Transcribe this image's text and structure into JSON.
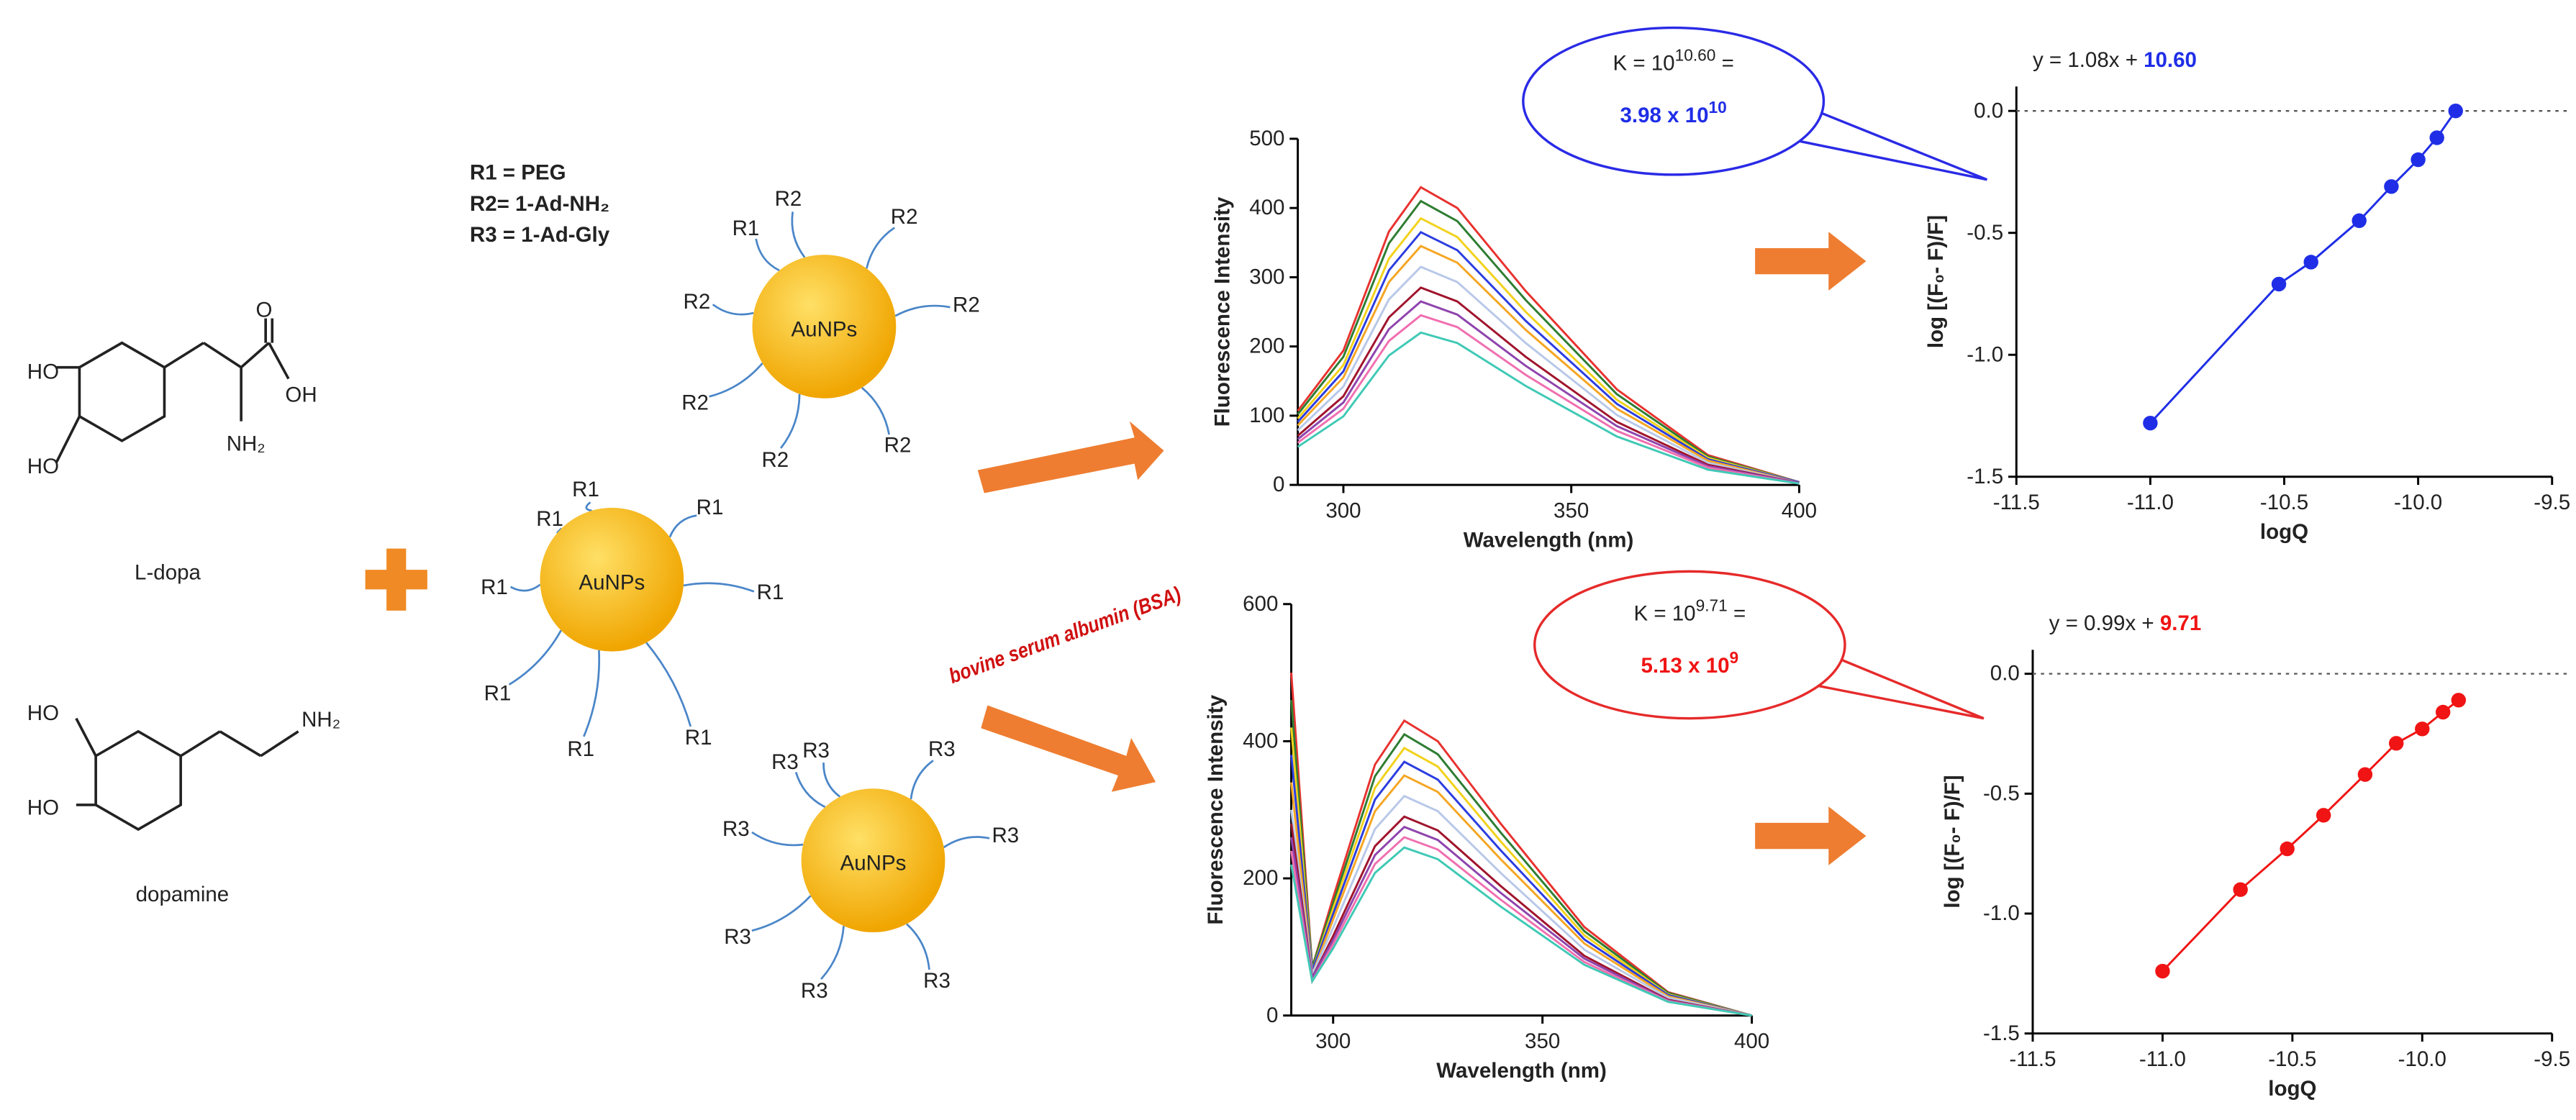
{
  "chart_data": [
    {
      "type": "line",
      "x_label": "Wavelength (nm)",
      "y_label": "Fluorescence Intensity",
      "x": [
        290,
        300,
        310,
        317,
        325,
        340,
        360,
        380,
        400
      ],
      "xlim": [
        290,
        400
      ],
      "xticks": [
        300,
        350,
        400
      ],
      "ylim": [
        0,
        500
      ],
      "yticks": [
        0,
        100,
        200,
        300,
        400,
        500
      ],
      "series": [
        {
          "color": "#e8322f",
          "values": [
            107,
            194,
            366,
            430,
            400,
            280,
            138,
            43,
            4
          ]
        },
        {
          "color": "#2e7d32",
          "values": [
            102,
            185,
            349,
            410,
            381,
            267,
            131,
            41,
            4
          ]
        },
        {
          "color": "#f2d21b",
          "values": [
            96,
            173,
            327,
            385,
            358,
            250,
            123,
            39,
            4
          ]
        },
        {
          "color": "#2b3de0",
          "values": [
            91,
            164,
            310,
            365,
            339,
            237,
            117,
            37,
            4
          ]
        },
        {
          "color": "#f5a623",
          "values": [
            86,
            155,
            293,
            345,
            321,
            224,
            110,
            35,
            3
          ]
        },
        {
          "color": "#b8c8e8",
          "values": [
            79,
            142,
            268,
            315,
            293,
            205,
            101,
            32,
            3
          ]
        },
        {
          "color": "#a0142c",
          "values": [
            71,
            128,
            242,
            285,
            265,
            185,
            91,
            29,
            3
          ]
        },
        {
          "color": "#8e44ad",
          "values": [
            66,
            119,
            225,
            265,
            246,
            172,
            85,
            27,
            3
          ]
        },
        {
          "color": "#f06fb0",
          "values": [
            61,
            110,
            208,
            245,
            228,
            159,
            78,
            25,
            2
          ]
        },
        {
          "color": "#3fc9b5",
          "values": [
            55,
            99,
            187,
            220,
            205,
            143,
            70,
            22,
            2
          ]
        }
      ]
    },
    {
      "type": "scatter",
      "color": "#1f2ee6",
      "equation": "y = 1.08x + ",
      "intercept_label": "10.60",
      "x_label": "logQ",
      "y_label": "log [(F₀- F)/F]",
      "zero_line": true,
      "x": [
        -11.0,
        -10.52,
        -10.4,
        -10.22,
        -10.1,
        -10.0,
        -9.93,
        -9.86
      ],
      "values": [
        -1.28,
        -0.71,
        -0.62,
        -0.45,
        -0.31,
        -0.2,
        -0.11,
        0.0
      ],
      "xlim": [
        -11.5,
        -9.5
      ],
      "xticks": [
        -11.5,
        {
          "value": -11,
          "label": "-11.0"
        },
        -10.5,
        {
          "value": -10,
          "label": "-10.0"
        },
        -9.5
      ],
      "ylim": [
        -1.5,
        0.1
      ],
      "yticks": [
        {
          "value": 0,
          "label": "0.0"
        },
        -0.5,
        {
          "value": -1,
          "label": "-1.0"
        },
        -1.5
      ]
    },
    {
      "type": "line",
      "x_label": "Wavelength (nm)",
      "y_label": "Fluorescence Intensity",
      "x": [
        290,
        295,
        300,
        310,
        317,
        325,
        340,
        360,
        380,
        400
      ],
      "xlim": [
        290,
        400
      ],
      "xticks": [
        300,
        350,
        400
      ],
      "ylim": [
        0,
        600
      ],
      "yticks": [
        0,
        200,
        400,
        600
      ],
      "series": [
        {
          "color": "#e8322f",
          "values": [
            500,
            70,
            172,
            366,
            430,
            400,
            280,
            129,
            34,
            0
          ]
        },
        {
          "color": "#2e7d32",
          "values": [
            460,
            70,
            164,
            349,
            410,
            381,
            267,
            123,
            33,
            0
          ]
        },
        {
          "color": "#f2d21b",
          "values": [
            420,
            65,
            156,
            332,
            390,
            363,
            254,
            117,
            31,
            0
          ]
        },
        {
          "color": "#2b3de0",
          "values": [
            380,
            65,
            148,
            315,
            370,
            344,
            241,
            111,
            30,
            0
          ]
        },
        {
          "color": "#f5a623",
          "values": [
            340,
            60,
            140,
            298,
            350,
            326,
            228,
            105,
            28,
            0
          ]
        },
        {
          "color": "#b8c8e8",
          "values": [
            300,
            60,
            128,
            272,
            320,
            298,
            208,
            96,
            26,
            0
          ]
        },
        {
          "color": "#a0142c",
          "values": [
            280,
            55,
            116,
            247,
            290,
            270,
            189,
            87,
            23,
            0
          ]
        },
        {
          "color": "#8e44ad",
          "values": [
            260,
            55,
            110,
            234,
            275,
            256,
            179,
            83,
            22,
            0
          ]
        },
        {
          "color": "#f06fb0",
          "values": [
            240,
            50,
            104,
            221,
            260,
            242,
            169,
            78,
            21,
            0
          ]
        },
        {
          "color": "#3fc9b5",
          "values": [
            220,
            50,
            98,
            208,
            245,
            228,
            159,
            74,
            20,
            0
          ]
        }
      ]
    },
    {
      "type": "scatter",
      "color": "#f01414",
      "equation": "y = 0.99x + ",
      "intercept_label": "9.71",
      "x_label": "logQ",
      "y_label": "log [(F₀- F)/F]",
      "zero_line": true,
      "x": [
        -11.0,
        -10.7,
        -10.52,
        -10.38,
        -10.22,
        -10.1,
        -10.0,
        -9.92,
        -9.86
      ],
      "values": [
        -1.24,
        -0.9,
        -0.73,
        -0.59,
        -0.42,
        -0.29,
        -0.23,
        -0.16,
        -0.11
      ],
      "xlim": [
        -11.5,
        -9.5
      ],
      "xticks": [
        -11.5,
        {
          "value": -11,
          "label": "-11.0"
        },
        -10.5,
        {
          "value": -10,
          "label": "-10.0"
        },
        -9.5
      ],
      "ylim": [
        -1.5,
        0.1
      ],
      "yticks": [
        {
          "value": 0,
          "label": "0.0"
        },
        -0.5,
        {
          "value": -1,
          "label": "-1.0"
        },
        -1.5
      ]
    }
  ],
  "diagram": {
    "legend": [
      "R1 = PEG",
      "R2= 1-Ad-NH₂",
      "R3 = 1-Ad-Gly"
    ],
    "particles": [
      {
        "label": "AuNPs",
        "ligands": [
          "R1",
          "R2",
          "R2",
          "R2",
          "R2",
          "R2",
          "R2",
          "R2"
        ]
      },
      {
        "label": "AuNPs",
        "ligands": [
          "R1",
          "R1",
          "R1",
          "R1",
          "R1",
          "R1",
          "R1",
          "R1"
        ]
      },
      {
        "label": "AuNPs",
        "ligands": [
          "R3",
          "R3",
          "R3",
          "R3",
          "R3",
          "R3",
          "R3",
          "R3"
        ]
      }
    ],
    "molecules": [
      {
        "name": "L-dopa",
        "atoms": [
          "HO",
          "HO",
          "O",
          "OH",
          "NH₂"
        ]
      },
      {
        "name": "dopamine",
        "atoms": [
          "HO",
          "HO",
          "NH₂"
        ]
      }
    ],
    "protein": "bovine serum albumin (BSA)",
    "bubbles": [
      {
        "k": [
          "K = 10",
          "10.60",
          " ="
        ],
        "value": [
          "3.98 x 10",
          "10"
        ]
      },
      {
        "k": [
          "K = 10",
          "9.71",
          " ="
        ],
        "value": [
          "5.13 x 10",
          "9"
        ]
      }
    ]
  }
}
